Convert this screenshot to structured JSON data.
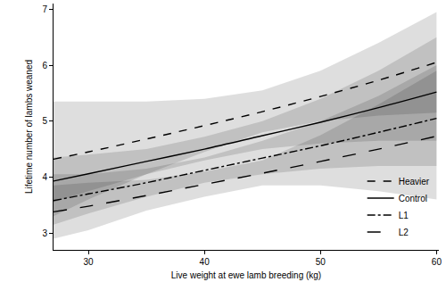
{
  "chart_data": {
    "type": "line",
    "x_label": "Live weight at ewe lamb breeding (kg)",
    "y_label": "Lifetime number of lambs weaned",
    "x": [
      27,
      30,
      35,
      40,
      45,
      50,
      55,
      60
    ],
    "series": [
      {
        "name": "Heavier",
        "color": "#000000",
        "line_style": "dash",
        "values": [
          4.32,
          4.45,
          4.68,
          4.92,
          5.17,
          5.44,
          5.73,
          6.05
        ],
        "lower": [
          3.3,
          3.6,
          4.05,
          4.45,
          4.8,
          5.0,
          5.1,
          5.15
        ],
        "upper": [
          5.35,
          5.35,
          5.35,
          5.4,
          5.55,
          5.9,
          6.4,
          6.95
        ]
      },
      {
        "name": "Control",
        "color": "#000000",
        "line_style": "solid",
        "values": [
          3.93,
          4.06,
          4.28,
          4.5,
          4.74,
          4.98,
          5.24,
          5.52
        ],
        "lower": [
          3.55,
          3.75,
          4.05,
          4.3,
          4.5,
          4.6,
          4.65,
          4.65
        ],
        "upper": [
          4.35,
          4.4,
          4.5,
          4.72,
          5.0,
          5.4,
          5.9,
          6.5
        ]
      },
      {
        "name": "L1",
        "color": "#000000",
        "line_style": "dashdot",
        "values": [
          3.58,
          3.7,
          3.9,
          4.12,
          4.34,
          4.56,
          4.8,
          5.05
        ],
        "lower": [
          3.15,
          3.35,
          3.65,
          3.9,
          4.05,
          4.15,
          4.2,
          4.2
        ],
        "upper": [
          4.05,
          4.05,
          4.15,
          4.35,
          4.65,
          5.0,
          5.45,
          6.0
        ]
      },
      {
        "name": "L2",
        "color": "#000000",
        "line_style": "longdash",
        "values": [
          3.38,
          3.48,
          3.67,
          3.87,
          4.07,
          4.28,
          4.5,
          4.73
        ],
        "lower": [
          2.9,
          3.05,
          3.4,
          3.65,
          3.85,
          3.85,
          3.75,
          3.6
        ],
        "upper": [
          3.85,
          3.9,
          3.95,
          4.1,
          4.3,
          4.75,
          5.3,
          5.9
        ]
      }
    ],
    "xlim": [
      27,
      60.2
    ],
    "ylim": [
      2.7,
      7.1
    ],
    "xticks": [
      30,
      40,
      50,
      60
    ],
    "yticks": [
      3,
      4,
      5,
      6,
      7
    ],
    "grid": false,
    "legend": "lower right"
  }
}
